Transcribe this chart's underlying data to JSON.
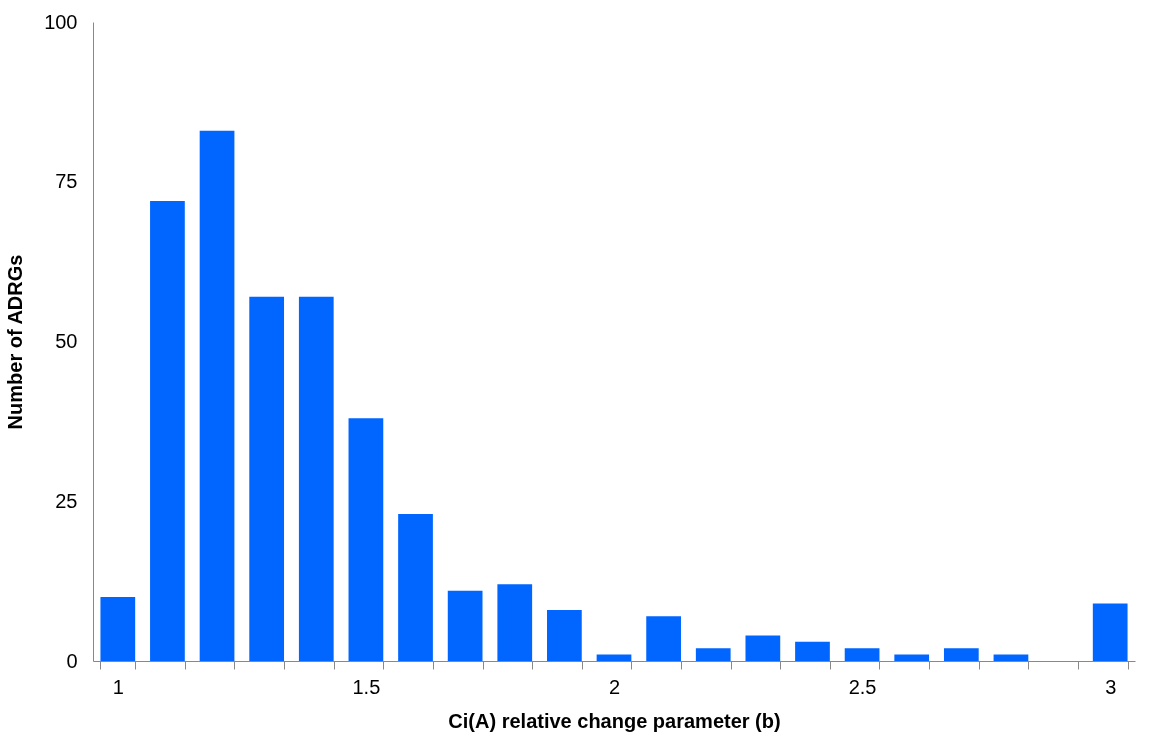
{
  "chart_data": {
    "type": "bar",
    "xlabel": "Ci(A) relative change parameter (b)",
    "ylabel": "Number of ADRGs",
    "categories": [
      "1",
      null,
      null,
      null,
      null,
      "1.5",
      null,
      null,
      null,
      null,
      "2",
      null,
      null,
      null,
      null,
      "2.5",
      null,
      null,
      null,
      null,
      "3"
    ],
    "values": [
      10,
      72,
      83,
      57,
      57,
      38,
      23,
      11,
      12,
      8,
      1,
      7,
      2,
      4,
      3,
      2,
      1,
      2,
      1,
      0,
      9
    ],
    "color": "#0066ff",
    "ylim": [
      0,
      100
    ],
    "yticks": [
      0,
      25,
      50,
      75,
      100
    ],
    "grid": false
  }
}
